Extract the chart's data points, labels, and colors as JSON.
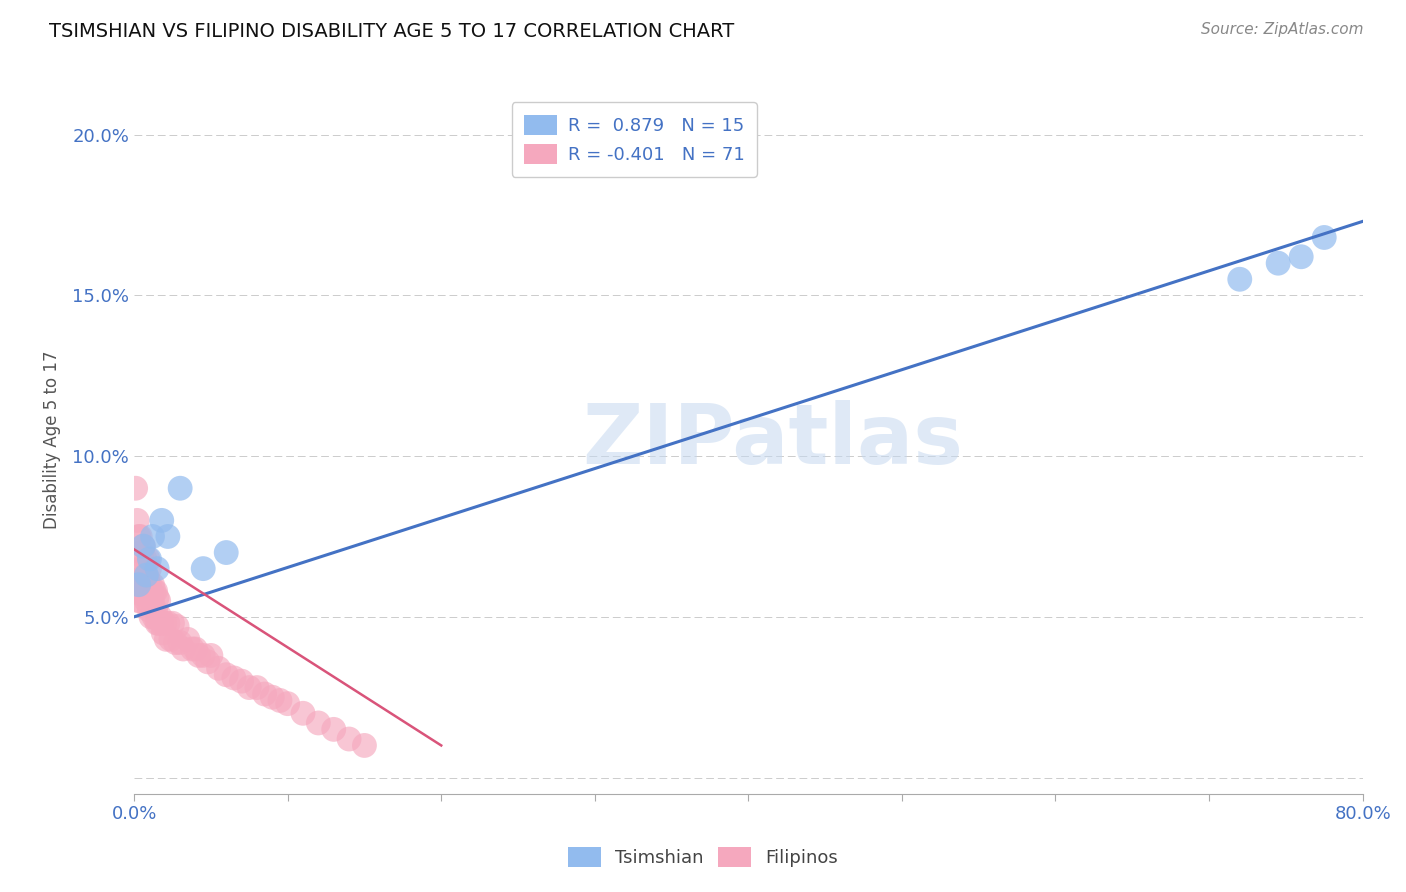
{
  "title": "TSIMSHIAN VS FILIPINO DISABILITY AGE 5 TO 17 CORRELATION CHART",
  "source_text": "Source: ZipAtlas.com",
  "ylabel": "Disability Age 5 to 17",
  "xlim": [
    0.0,
    0.8
  ],
  "ylim": [
    -0.005,
    0.215
  ],
  "x_ticks": [
    0.0,
    0.1,
    0.2,
    0.3,
    0.4,
    0.5,
    0.6,
    0.7,
    0.8
  ],
  "x_tick_labels": [
    "0.0%",
    "",
    "",
    "",
    "",
    "",
    "",
    "",
    "80.0%"
  ],
  "y_ticks": [
    0.0,
    0.05,
    0.1,
    0.15,
    0.2
  ],
  "y_tick_labels": [
    "",
    "5.0%",
    "10.0%",
    "15.0%",
    "20.0%"
  ],
  "tsimshian_color": "#92bbee",
  "filipino_color": "#f5a8be",
  "tsimshian_line_color": "#4472c4",
  "filipino_line_color": "#d9547a",
  "legend_r_tsimshian": "0.879",
  "legend_n_tsimshian": "15",
  "legend_r_filipino": "-0.401",
  "legend_n_filipino": "71",
  "watermark": "ZIPatlas",
  "tsimshian_x": [
    0.003,
    0.006,
    0.008,
    0.01,
    0.012,
    0.015,
    0.018,
    0.022,
    0.03,
    0.045,
    0.06,
    0.72,
    0.745,
    0.76,
    0.775
  ],
  "tsimshian_y": [
    0.06,
    0.072,
    0.063,
    0.068,
    0.075,
    0.065,
    0.08,
    0.075,
    0.09,
    0.065,
    0.07,
    0.155,
    0.16,
    0.162,
    0.168
  ],
  "filipino_x": [
    0.001,
    0.002,
    0.002,
    0.003,
    0.003,
    0.004,
    0.004,
    0.004,
    0.005,
    0.005,
    0.005,
    0.006,
    0.006,
    0.006,
    0.007,
    0.007,
    0.007,
    0.008,
    0.008,
    0.009,
    0.009,
    0.009,
    0.01,
    0.01,
    0.01,
    0.011,
    0.011,
    0.012,
    0.012,
    0.013,
    0.013,
    0.014,
    0.014,
    0.015,
    0.015,
    0.016,
    0.016,
    0.017,
    0.018,
    0.019,
    0.02,
    0.021,
    0.022,
    0.024,
    0.025,
    0.027,
    0.028,
    0.03,
    0.032,
    0.035,
    0.038,
    0.04,
    0.042,
    0.045,
    0.048,
    0.05,
    0.055,
    0.06,
    0.065,
    0.07,
    0.075,
    0.08,
    0.085,
    0.09,
    0.095,
    0.1,
    0.11,
    0.12,
    0.13,
    0.14,
    0.15
  ],
  "filipino_y": [
    0.09,
    0.06,
    0.08,
    0.055,
    0.075,
    0.055,
    0.065,
    0.075,
    0.057,
    0.062,
    0.07,
    0.058,
    0.065,
    0.072,
    0.057,
    0.063,
    0.068,
    0.055,
    0.062,
    0.058,
    0.062,
    0.068,
    0.052,
    0.06,
    0.065,
    0.05,
    0.058,
    0.055,
    0.06,
    0.05,
    0.058,
    0.052,
    0.058,
    0.048,
    0.056,
    0.048,
    0.055,
    0.05,
    0.048,
    0.045,
    0.048,
    0.043,
    0.048,
    0.043,
    0.048,
    0.042,
    0.047,
    0.042,
    0.04,
    0.043,
    0.04,
    0.04,
    0.038,
    0.038,
    0.036,
    0.038,
    0.034,
    0.032,
    0.031,
    0.03,
    0.028,
    0.028,
    0.026,
    0.025,
    0.024,
    0.023,
    0.02,
    0.017,
    0.015,
    0.012,
    0.01
  ],
  "tsimshian_line_x": [
    0.0,
    0.8
  ],
  "tsimshian_line_y": [
    0.05,
    0.173
  ],
  "filipino_line_x": [
    0.0,
    0.2
  ],
  "filipino_line_y": [
    0.071,
    0.01
  ]
}
